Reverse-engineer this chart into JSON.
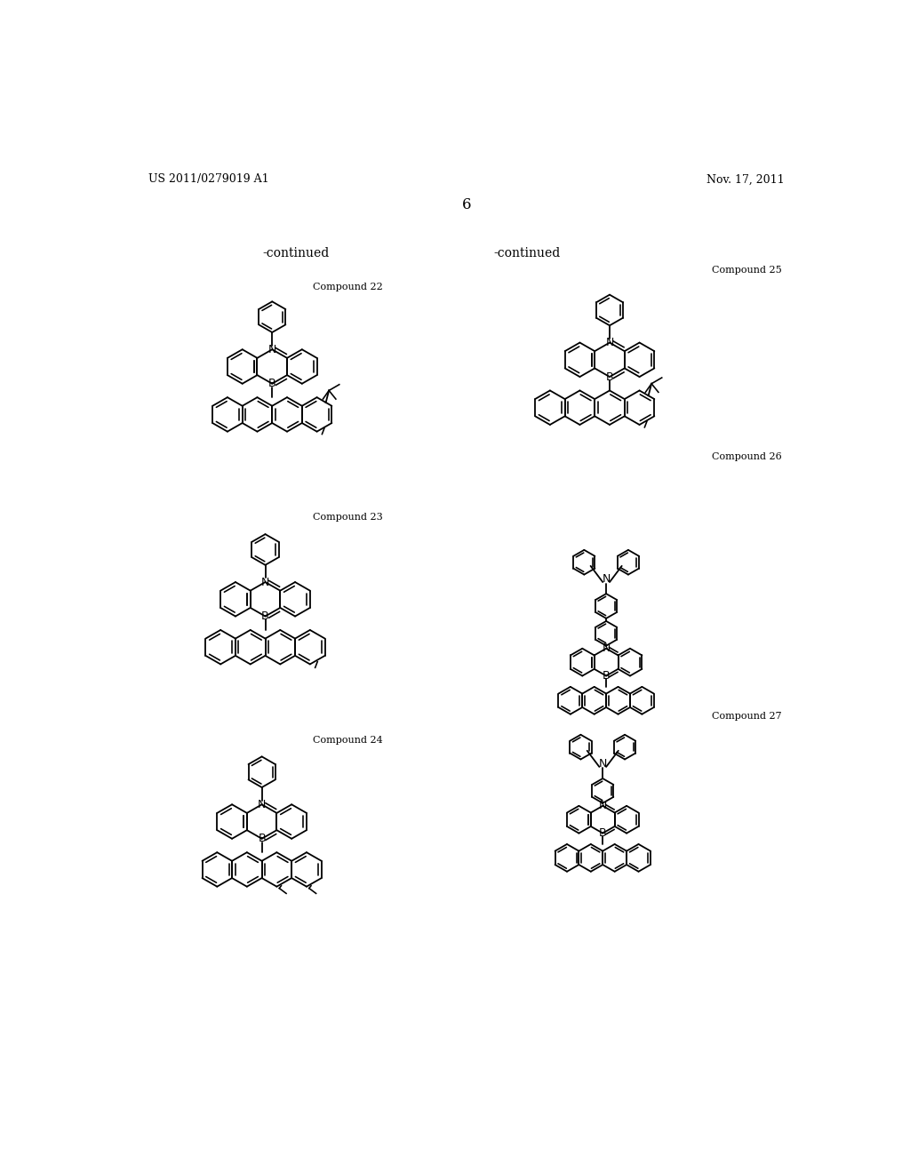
{
  "page_number": "6",
  "patent_number": "US 2011/0279019 A1",
  "patent_date": "Nov. 17, 2011",
  "continued_left": "-continued",
  "continued_right": "-continued",
  "background_color": "#ffffff",
  "text_color": "#000000"
}
